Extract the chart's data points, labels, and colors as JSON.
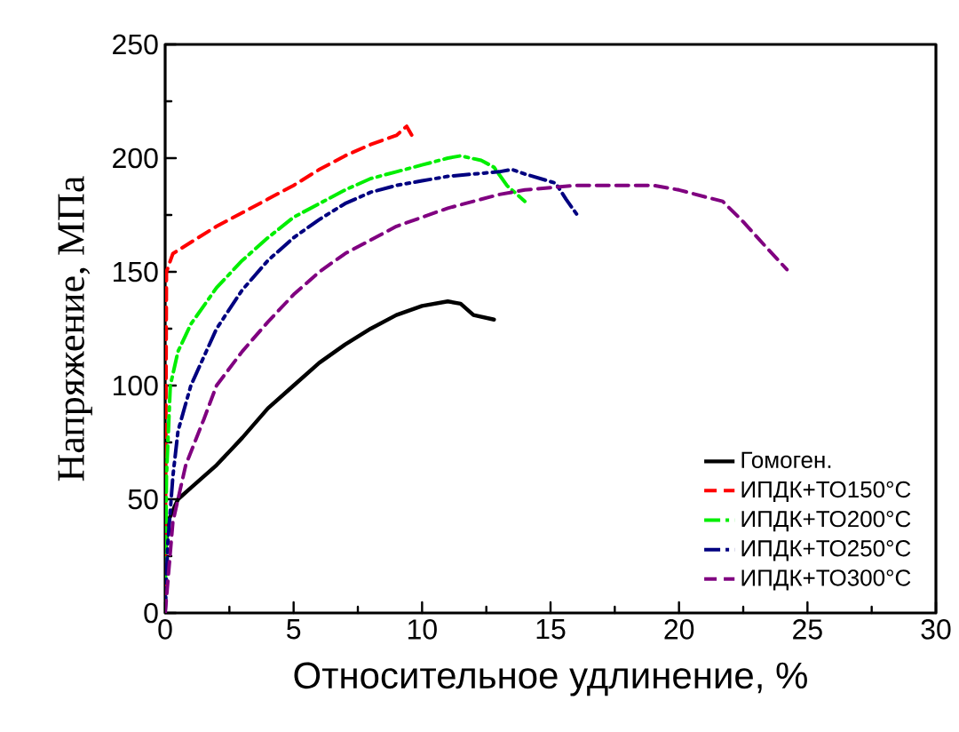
{
  "chart_data": {
    "type": "line",
    "xlabel": "Относительное удлинение, %",
    "ylabel": "Напряжение, МПа",
    "xlim": [
      0,
      30
    ],
    "ylim": [
      0,
      250
    ],
    "xticks": [
      0,
      5,
      10,
      15,
      20,
      25,
      30
    ],
    "yticks": [
      0,
      50,
      100,
      150,
      200,
      250
    ],
    "legend": "bottom right",
    "grid": false,
    "marker": "none",
    "series": [
      {
        "name": "Гомоген.",
        "color": "#000000",
        "line_style": "solid",
        "x": [
          0,
          0.1,
          0.5,
          1,
          2,
          3,
          4,
          5,
          6,
          7,
          8,
          9,
          10,
          11,
          11.5,
          12,
          12.8
        ],
        "values": [
          25,
          40,
          50,
          55,
          65,
          77,
          90,
          100,
          110,
          118,
          125,
          131,
          135,
          137,
          136,
          131,
          129
        ]
      },
      {
        "name": "ИПДК+ТО150°C",
        "color": "#ff0000",
        "line_style": "dashed",
        "x": [
          0,
          0.05,
          0.3,
          1,
          2,
          3,
          4,
          5,
          6,
          7,
          8,
          9,
          9.4,
          9.6
        ],
        "values": [
          0,
          150,
          158,
          163,
          170,
          176,
          182,
          188,
          195,
          201,
          206,
          210,
          214,
          210
        ]
      },
      {
        "name": "ИПДК+ТО200°C",
        "color": "#00ee00",
        "line_style": "dashdot",
        "x": [
          0,
          0.05,
          0.2,
          0.5,
          1,
          2,
          3,
          4,
          5,
          6,
          7,
          8,
          9,
          10,
          11,
          11.5,
          12.3,
          12.8,
          13.3,
          14.0
        ],
        "values": [
          0,
          60,
          100,
          115,
          127,
          143,
          155,
          165,
          174,
          180,
          186,
          191,
          194,
          197,
          200,
          201,
          199,
          196,
          188,
          181
        ]
      },
      {
        "name": "ИПДК+ТО250°C",
        "color": "#000080",
        "line_style": "dashdotdot",
        "x": [
          0,
          0.1,
          0.3,
          0.5,
          1,
          2,
          3,
          4,
          5,
          6,
          7,
          8,
          9,
          10,
          11,
          12,
          13,
          13.5,
          14,
          15.2,
          15.6,
          16.1
        ],
        "values": [
          0,
          30,
          60,
          80,
          100,
          125,
          142,
          155,
          165,
          173,
          180,
          185,
          188,
          190,
          192,
          193,
          194,
          195,
          193,
          189,
          182,
          174
        ]
      },
      {
        "name": "ИПДК+ТО300°C",
        "color": "#800080",
        "line_style": "dashed",
        "x": [
          0,
          0.3,
          0.8,
          1.5,
          2,
          3,
          4,
          5,
          6,
          7,
          8,
          9,
          10,
          11,
          12,
          13,
          14,
          15,
          16,
          17,
          18,
          19,
          20,
          21,
          21.7,
          22.5,
          23.3,
          24.2
        ],
        "values": [
          0,
          40,
          65,
          85,
          100,
          115,
          128,
          140,
          150,
          158,
          164,
          170,
          174,
          178,
          181,
          184,
          186,
          187,
          188,
          188,
          188,
          188,
          186,
          183,
          181,
          172,
          162,
          151
        ]
      }
    ]
  }
}
